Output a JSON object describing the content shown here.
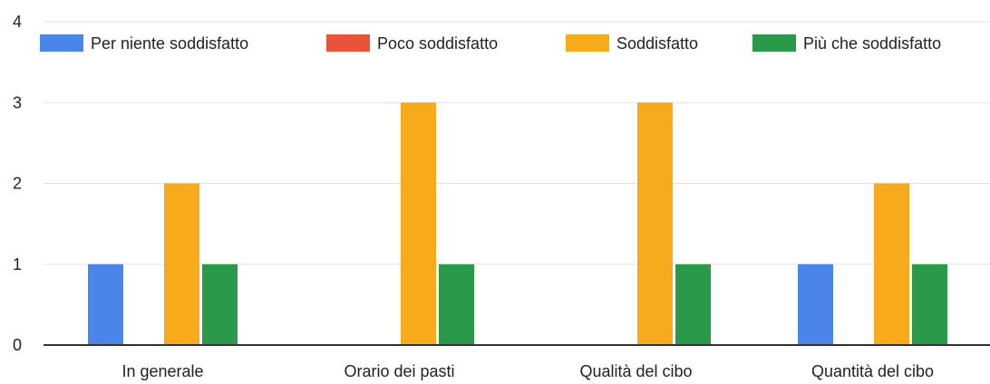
{
  "chart_data": {
    "type": "bar",
    "categories": [
      "In generale",
      "Orario dei pasti",
      "Qualità del cibo",
      "Quantità del cibo"
    ],
    "series": [
      {
        "name": "Per niente soddisfatto",
        "color": "#4a86e8",
        "values": [
          1,
          0,
          0,
          1
        ]
      },
      {
        "name": "Poco soddisfatto",
        "color": "#e8533a",
        "values": [
          0,
          0,
          0,
          0
        ]
      },
      {
        "name": "Soddisfatto",
        "color": "#f6aa1c",
        "values": [
          2,
          3,
          3,
          2
        ]
      },
      {
        "name": "Più che soddisfatto",
        "color": "#2a9a4a",
        "values": [
          1,
          1,
          1,
          1
        ]
      }
    ],
    "ylim": [
      0,
      4
    ],
    "yticks": [
      0,
      1,
      2,
      3,
      4
    ],
    "grid": true,
    "legend_position": "top"
  }
}
